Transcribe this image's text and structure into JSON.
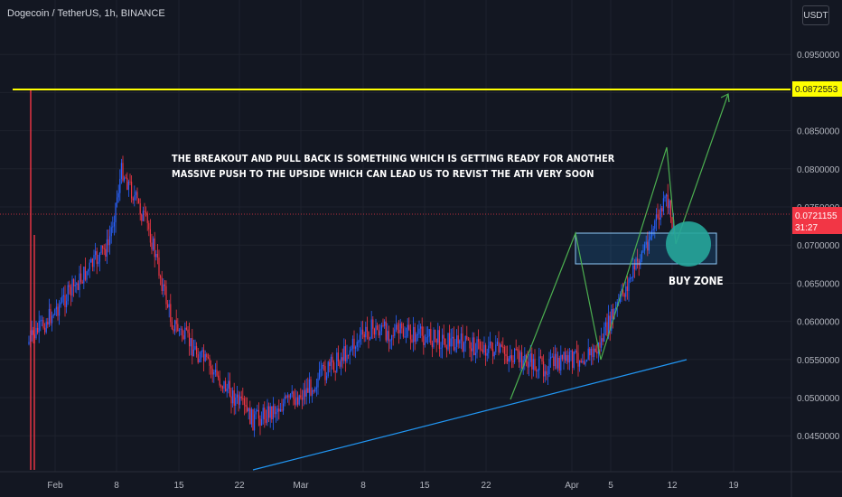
{
  "header": {
    "symbol": "Dogecoin / TetherUS, 1h, BINANCE",
    "currency": "USDT"
  },
  "colors": {
    "background": "#131722",
    "up_candle": "#2962ff",
    "down_candle": "#f23645",
    "resistance": "#ffff00",
    "trendline": "#2196f3",
    "projection": "#4caf50",
    "buy_zone_circle": "#26a69a"
  },
  "annotations": {
    "note_line1": "THE BREAKOUT AND PULL BACK IS SOMETHING WHICH IS GETTING READY FOR ANOTHER",
    "note_line2": "MASSIVE PUSH TO THE UPSIDE WHICH CAN LEAD US TO REVIST THE ATH VERY SOON",
    "buy_zone_label": "BUY ZONE"
  },
  "chart_data": {
    "type": "candlestick",
    "pair": "DOGE/USDT",
    "interval": "1h",
    "ylim": [
      0.0423,
      0.096
    ],
    "y_ticks": [
      "0.0950000",
      "0.0900000",
      "0.0850000",
      "0.0800000",
      "0.0750000",
      "0.0700000",
      "0.0650000",
      "0.0600000",
      "0.0550000",
      "0.0500000",
      "0.0450000"
    ],
    "x_ticks": [
      "Feb",
      "8",
      "15",
      "22",
      "Mar",
      "8",
      "15",
      "22",
      "Apr",
      "5",
      "12",
      "19"
    ],
    "price_path": [
      [
        "Feb",
        0.057
      ],
      [
        "8",
        0.07
      ],
      [
        "9",
        0.08
      ],
      [
        "15",
        0.072
      ],
      [
        "18",
        0.06
      ],
      [
        "22",
        0.047
      ],
      [
        "Mar",
        0.0505
      ],
      [
        "8",
        0.059
      ],
      [
        "15",
        0.058
      ],
      [
        "22",
        0.0565
      ],
      [
        "Apr",
        0.054
      ],
      [
        "5",
        0.056
      ],
      [
        "12",
        0.076
      ],
      [
        "12",
        0.0721
      ]
    ],
    "current_price": "0.0721155",
    "countdown": "31:27",
    "resistance_level": "0.0872553",
    "buy_zone": [
      0.0665,
      0.0698
    ]
  }
}
